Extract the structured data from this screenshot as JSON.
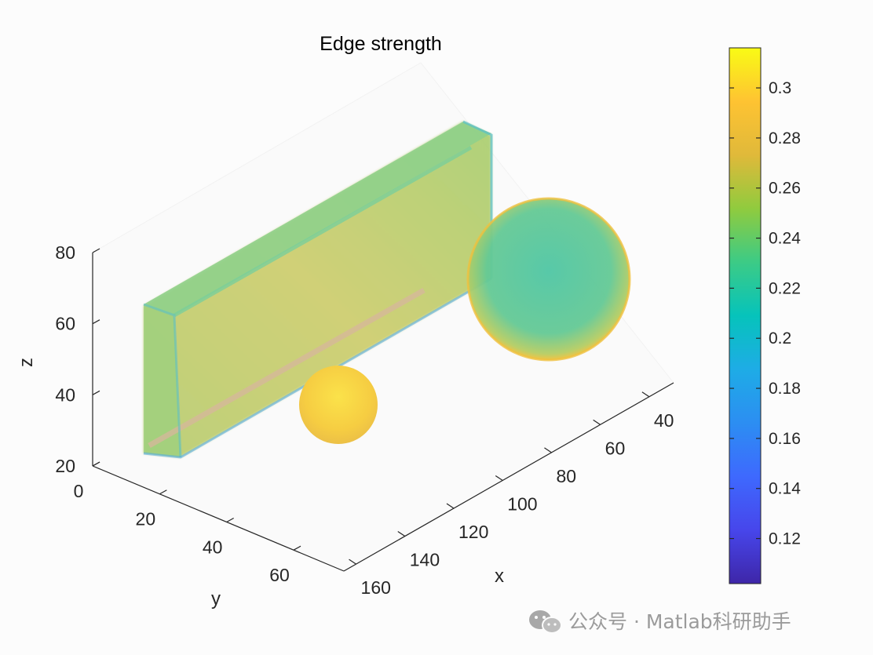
{
  "chart_data": {
    "type": "3d-surface",
    "title": "Edge strength",
    "xlabel": "x",
    "ylabel": "y",
    "zlabel": "z",
    "x_ticks": [
      "40",
      "60",
      "80",
      "100",
      "120",
      "140",
      "160"
    ],
    "y_ticks": [
      "0",
      "20",
      "40",
      "60"
    ],
    "z_ticks": [
      "20",
      "40",
      "60",
      "80"
    ],
    "xlim": [
      30,
      165
    ],
    "ylim": [
      0,
      75
    ],
    "zlim": [
      20,
      80
    ],
    "colorbar": {
      "ticks": [
        "0.12",
        "0.14",
        "0.16",
        "0.18",
        "0.2",
        "0.22",
        "0.24",
        "0.26",
        "0.28",
        "0.3"
      ],
      "values": [
        0.12,
        0.14,
        0.16,
        0.18,
        0.2,
        0.22,
        0.24,
        0.26,
        0.28,
        0.3
      ],
      "range": [
        0.102,
        0.316
      ],
      "colormap": "parula"
    },
    "objects": [
      {
        "name": "box",
        "typical_value": 0.25
      },
      {
        "name": "large sphere",
        "typical_value": 0.23
      },
      {
        "name": "small sphere",
        "typical_value": 0.28
      }
    ]
  },
  "colors": {
    "background": "#fcfcfc",
    "axis": "#262626"
  },
  "watermark": {
    "text": "公众号 · Matlab科研助手",
    "icon": "wechat-icon"
  }
}
